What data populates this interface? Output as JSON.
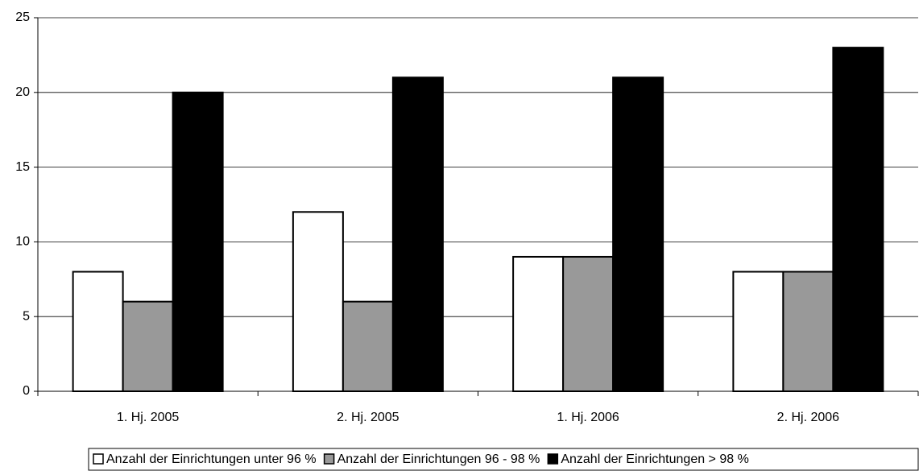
{
  "chart_data": {
    "type": "bar",
    "categories": [
      "1. Hj. 2005",
      "2. Hj. 2005",
      "1. Hj. 2006",
      "2. Hj. 2006"
    ],
    "series": [
      {
        "name": "Anzahl der Einrichtungen unter 96 %",
        "color": "#ffffff",
        "values": [
          8,
          12,
          9,
          8
        ]
      },
      {
        "name": "Anzahl der Einrichtungen 96 - 98 %",
        "color": "#999999",
        "values": [
          6,
          6,
          9,
          8
        ]
      },
      {
        "name": "Anzahl der Einrichtungen > 98 %",
        "color": "#000000",
        "values": [
          20,
          21,
          21,
          23
        ]
      }
    ],
    "ylim": [
      0,
      25
    ],
    "yticks": [
      0,
      5,
      10,
      15,
      20,
      25
    ],
    "grid": true,
    "legend": "bottom"
  }
}
